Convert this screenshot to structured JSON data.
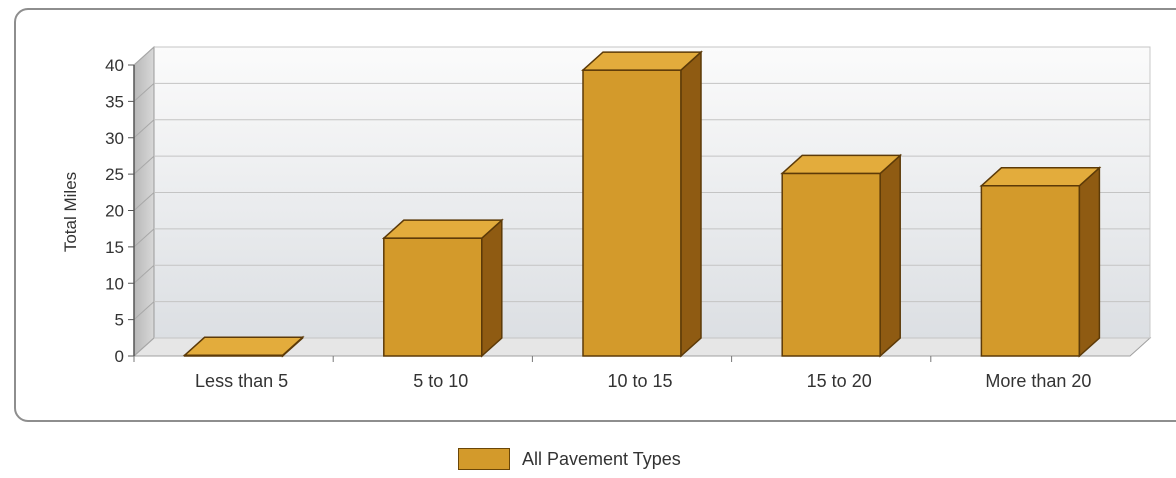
{
  "chart_data": {
    "type": "bar",
    "title": "",
    "xlabel": "",
    "ylabel": "Total Miles",
    "ylim": [
      0,
      40
    ],
    "yticks": [
      0,
      5,
      10,
      15,
      20,
      25,
      30,
      35,
      40
    ],
    "categories": [
      "Less than 5",
      "5 to 10",
      "10 to 15",
      "15 to 20",
      "More than 20"
    ],
    "series": [
      {
        "name": "All Pavement Types",
        "values": [
          0.1,
          16.2,
          39.3,
          25.1,
          23.4
        ]
      }
    ],
    "grid": true,
    "legend_position": "bottom",
    "style": "3d",
    "colors": {
      "bar_front": "#d39a2b",
      "bar_top": "#e3ac3c",
      "bar_side": "#8f5b12",
      "bar_edge": "#5c3a08"
    }
  }
}
